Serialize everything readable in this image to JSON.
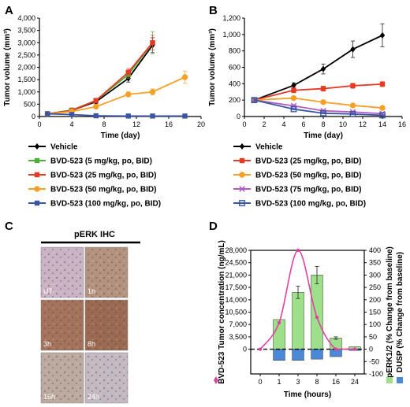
{
  "panels": {
    "A": {
      "label": "A"
    },
    "B": {
      "label": "B"
    },
    "C": {
      "label": "C",
      "title": "pERK IHC",
      "tiles": [
        {
          "label": "UT",
          "tone": "#c9b3c4"
        },
        {
          "label": "1h",
          "tone": "#b3927f"
        },
        {
          "label": "3h",
          "tone": "#a3735c"
        },
        {
          "label": "8h",
          "tone": "#9a6a52"
        },
        {
          "label": "16h",
          "tone": "#bca99f"
        },
        {
          "label": "24h",
          "tone": "#c3b9c3"
        }
      ]
    },
    "D": {
      "label": "D"
    }
  },
  "chart_data": [
    {
      "id": "A",
      "type": "line",
      "xlabel": "Time (day)",
      "ylabel": "Tumor volume (mm³)",
      "xlim": [
        0,
        20
      ],
      "ylim": [
        0,
        4000
      ],
      "xticks": [
        0,
        4,
        8,
        12,
        16,
        20
      ],
      "yticks": [
        0,
        500,
        1000,
        1500,
        2000,
        2500,
        3000,
        3500,
        4000
      ],
      "ytick_labels": [
        "0",
        "500",
        "1,000",
        "1,500",
        "2,000",
        "2,500",
        "3,000",
        "3,500",
        "4,000"
      ],
      "series": [
        {
          "name": "Vehicle",
          "color": "#000000",
          "marker": "diamond",
          "x": [
            1,
            4,
            7,
            11,
            14
          ],
          "y": [
            110,
            250,
            600,
            1550,
            2900
          ],
          "err": [
            20,
            40,
            80,
            150,
            300
          ]
        },
        {
          "name": "BVD-523 (5 mg/kg, po, BID)",
          "color": "#4caf3c",
          "marker": "square",
          "x": [
            1,
            4,
            7,
            11,
            14
          ],
          "y": [
            110,
            260,
            650,
            1700,
            3000
          ],
          "err": [
            20,
            40,
            80,
            150,
            450
          ]
        },
        {
          "name": "BVD-523 (25 mg/kg, po, BID)",
          "color": "#e53a24",
          "marker": "square",
          "x": [
            1,
            4,
            7,
            11,
            14
          ],
          "y": [
            110,
            240,
            650,
            1800,
            3000
          ],
          "err": [
            20,
            40,
            80,
            150,
            300
          ]
        },
        {
          "name": "BVD-523 (50 mg/kg, po, BID)",
          "color": "#f7a028",
          "marker": "circle",
          "x": [
            1,
            4,
            7,
            11,
            14,
            18
          ],
          "y": [
            110,
            200,
            400,
            900,
            1000,
            1600
          ],
          "err": [
            20,
            30,
            60,
            100,
            120,
            250
          ]
        },
        {
          "name": "BVD-523 (100 mg/kg, po, BID)",
          "color": "#3a55a4",
          "marker": "square",
          "x": [
            1,
            4,
            7,
            11,
            14,
            18
          ],
          "y": [
            110,
            80,
            30,
            20,
            20,
            20
          ],
          "err": [
            15,
            10,
            5,
            5,
            5,
            5
          ]
        }
      ]
    },
    {
      "id": "B",
      "type": "line",
      "xlabel": "Time (day)",
      "ylabel": "Tumor volume (mm³)",
      "xlim": [
        0,
        16
      ],
      "ylim": [
        0,
        1200
      ],
      "xticks": [
        0,
        2,
        4,
        6,
        8,
        10,
        12,
        14,
        16
      ],
      "yticks": [
        0,
        200,
        400,
        600,
        800,
        1000,
        1200
      ],
      "ytick_labels": [
        "0",
        "200",
        "400",
        "600",
        "800",
        "1,000",
        "1,200"
      ],
      "series": [
        {
          "name": "Vehicle",
          "color": "#000000",
          "marker": "diamond",
          "x": [
            1,
            5,
            8,
            11,
            14
          ],
          "y": [
            200,
            380,
            580,
            820,
            990
          ],
          "err": [
            20,
            30,
            60,
            100,
            140
          ]
        },
        {
          "name": "BVD-523 (25 mg/kg, po, BID)",
          "color": "#e53a24",
          "marker": "square",
          "x": [
            1,
            5,
            8,
            11,
            14
          ],
          "y": [
            200,
            320,
            340,
            375,
            395
          ],
          "err": [
            20,
            30,
            30,
            30,
            30
          ]
        },
        {
          "name": "BVD-523 (50 mg/kg, po, BID)",
          "color": "#f7a028",
          "marker": "circle",
          "x": [
            1,
            5,
            8,
            11,
            14
          ],
          "y": [
            200,
            225,
            175,
            135,
            105
          ],
          "err": [
            15,
            15,
            15,
            15,
            15
          ]
        },
        {
          "name": "BVD-523 (75 mg/kg, po, BID)",
          "color": "#b15bc0",
          "marker": "x",
          "x": [
            1,
            5,
            8,
            11,
            14
          ],
          "y": [
            200,
            130,
            70,
            55,
            35
          ],
          "err": [
            15,
            15,
            10,
            10,
            8
          ]
        },
        {
          "name": "BVD-523 (100 mg/kg, po, BID)",
          "color": "#3a55a4",
          "marker": "square-open",
          "x": [
            1,
            5,
            8,
            11,
            14
          ],
          "y": [
            200,
            90,
            40,
            30,
            15
          ],
          "err": [
            15,
            10,
            8,
            8,
            5
          ]
        }
      ]
    },
    {
      "id": "D",
      "type": "bar",
      "xlabel": "Time (hours)",
      "ylabel_left": "BVD-523 Tumor concentration (ng/mL)",
      "ylabel_right_1": "pERK1/2 (% Change from baseline)",
      "ylabel_right_2": "DUSP (% Change from baseline)",
      "categories": [
        "0",
        "1",
        "3",
        "8",
        "16",
        "24"
      ],
      "ylim_right": [
        -100,
        400
      ],
      "yticks_right": [
        -100,
        -50,
        0,
        50,
        100,
        150,
        200,
        250,
        300,
        350,
        400
      ],
      "yticks_left": [
        0,
        3500,
        7000,
        10500,
        14000,
        17500,
        21000,
        24500,
        28000
      ],
      "ytick_labels_left": [
        "0",
        "3,500",
        "7,000",
        "10,500",
        "14,000",
        "17,500",
        "21,000",
        "24,500",
        "28,000"
      ],
      "series": [
        {
          "name": "pERK1/2",
          "color": "#9ee08a",
          "values": [
            0,
            120,
            230,
            300,
            45,
            10
          ],
          "err": [
            0,
            0,
            25,
            35,
            5,
            0
          ]
        },
        {
          "name": "DUSP",
          "color": "#4a88d8",
          "values": [
            0,
            -45,
            -45,
            -40,
            -30,
            -5
          ],
          "err": [
            0,
            0,
            0,
            0,
            0,
            0
          ]
        },
        {
          "name": "BVD-523 Tumor concentration",
          "color": "#e040a0",
          "axis": "left",
          "values": [
            0,
            7500,
            28000,
            9000,
            0,
            0
          ]
        }
      ],
      "zero_line": "dashed"
    }
  ]
}
